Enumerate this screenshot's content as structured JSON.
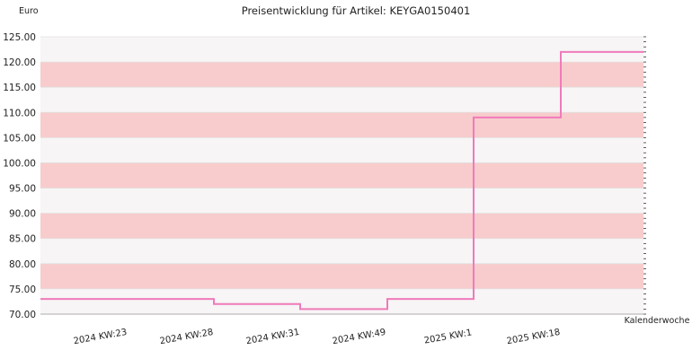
{
  "chart_data": {
    "type": "line",
    "title": "Preisentwicklung für Artikel: KEYGA0150401",
    "xlabel": "Kalenderwoche",
    "ylabel": "Euro",
    "step": true,
    "categories": [
      "2024 KW:23",
      "2024 KW:28",
      "2024 KW:31",
      "2024 KW:49",
      "2025 KW:1",
      "2025 KW:18"
    ],
    "series": [
      {
        "values": [
          73.0,
          72.0,
          71.0,
          73.0,
          109.0,
          122.0
        ]
      }
    ],
    "ylim": [
      70,
      125
    ],
    "yticks": [
      "70.00",
      "75.00",
      "80.00",
      "85.00",
      "90.00",
      "95.00",
      "100.00",
      "105.00",
      "110.00",
      "115.00",
      "120.00",
      "125.00"
    ],
    "line_color": "#f07aba",
    "band_colors": [
      "#f7f5f6",
      "#f8cccc"
    ],
    "grid": true
  }
}
